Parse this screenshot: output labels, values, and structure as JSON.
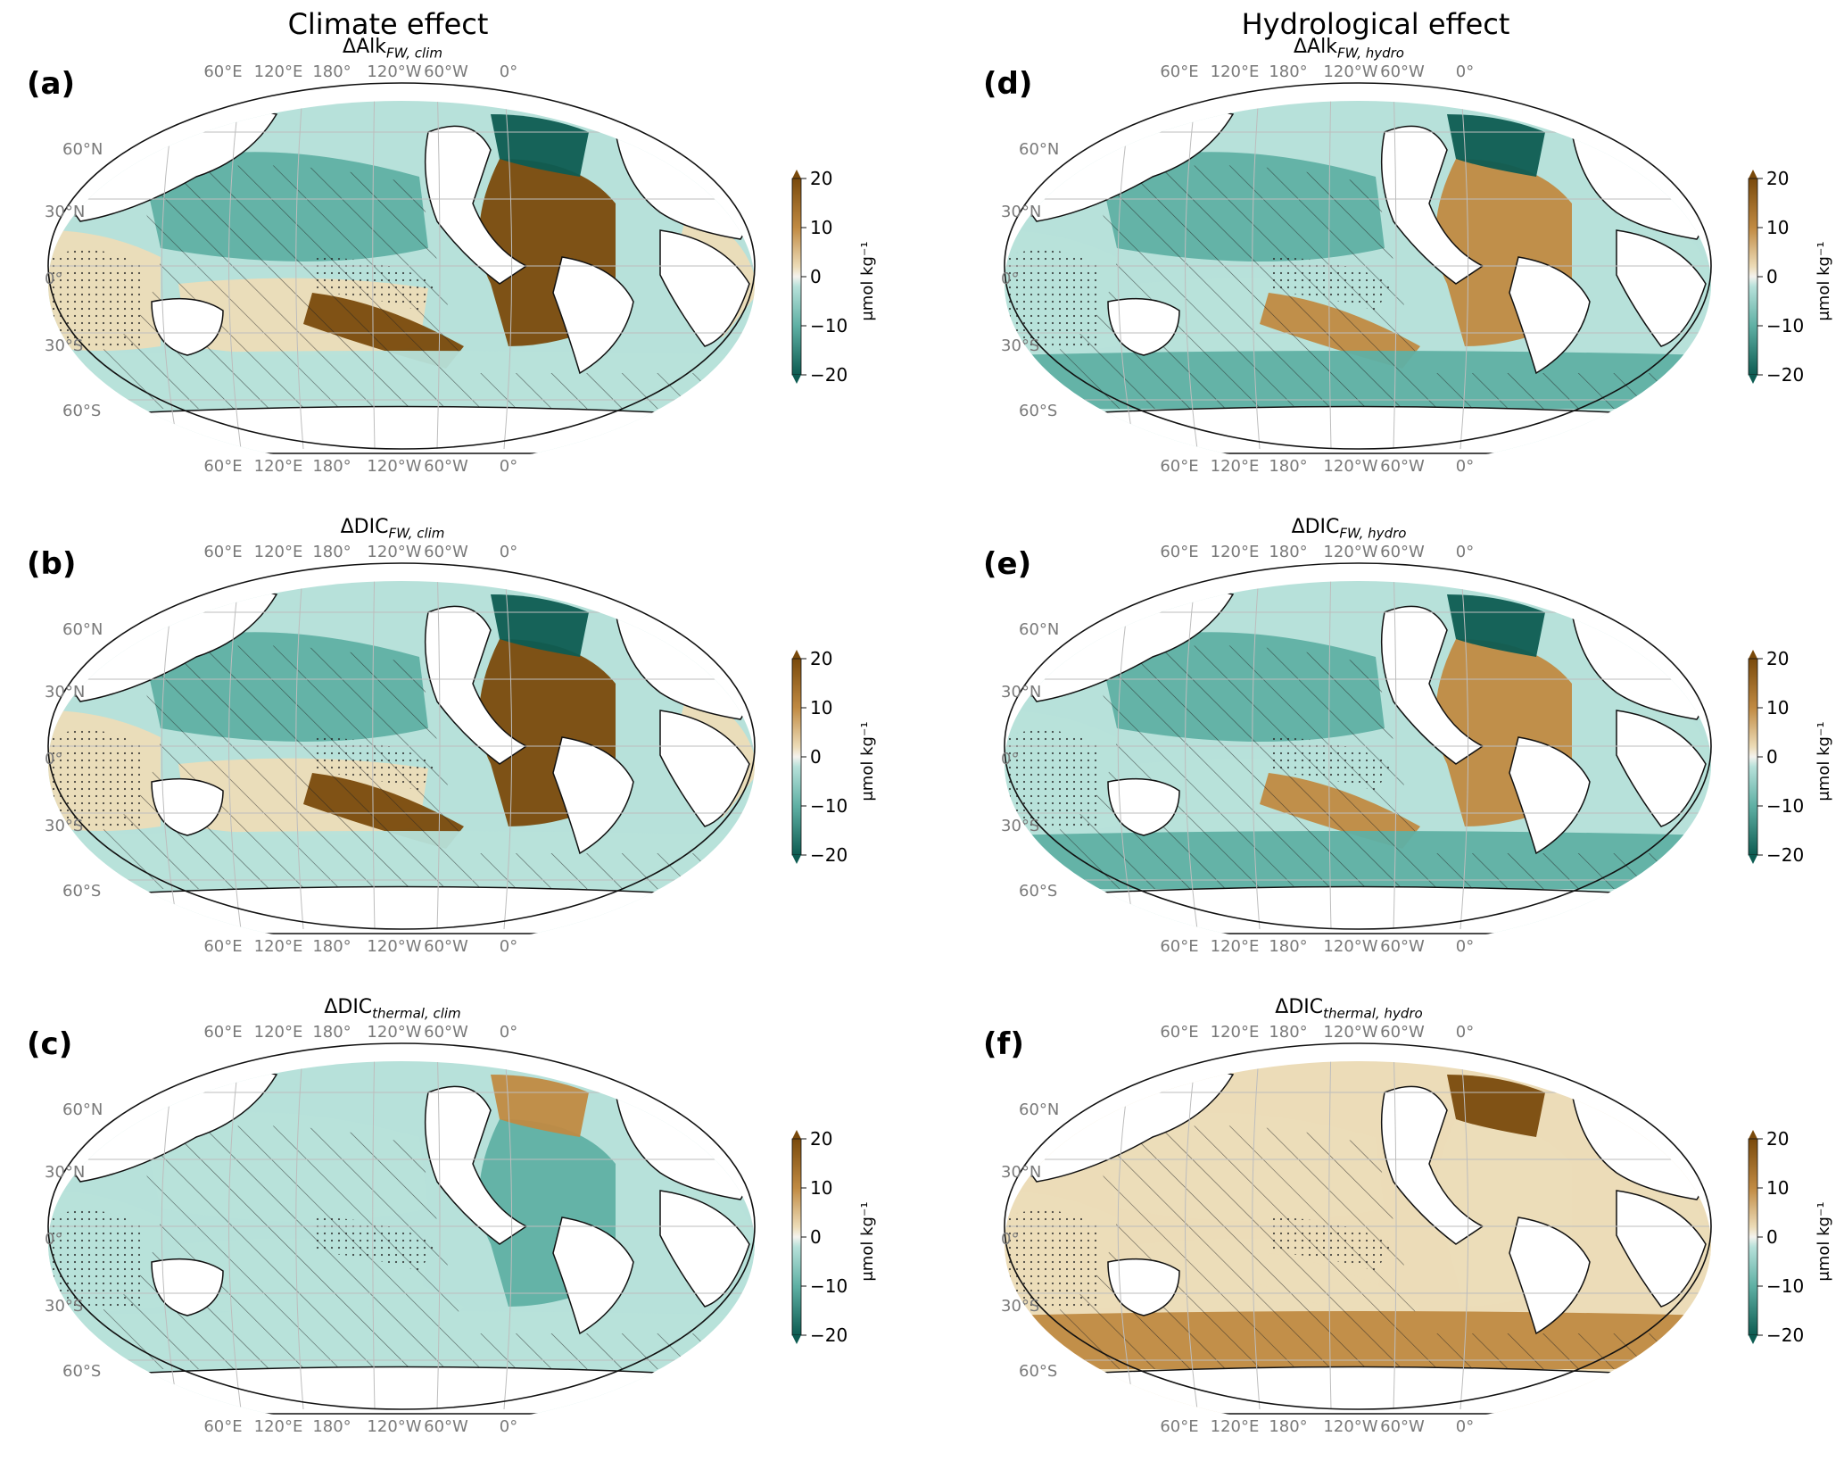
{
  "column_titles": [
    "Climate effect",
    "Hydrological effect"
  ],
  "colors": {
    "brown_strong": "#7a4a0c",
    "brown_mid": "#c08a42",
    "tan_light": "#ecdcb8",
    "neutral": "#f4f3ee",
    "teal_light": "#b7e1da",
    "teal_mid": "#5fb0a4",
    "teal_dark": "#0d5c52"
  },
  "lon_labels": [
    "60°E",
    "120°E",
    "180°",
    "120°W",
    "60°W",
    "0°"
  ],
  "lat_labels": [
    "60°N",
    "30°N",
    "0°",
    "30°S",
    "60°S"
  ],
  "colorbar": {
    "ticks": [
      "20",
      "10",
      "0",
      "−10",
      "−20"
    ],
    "unit": "μmol kg⁻¹"
  },
  "panels": [
    {
      "letter": "(a)",
      "title_main": "ΔAlk",
      "title_sub": "FW, clim",
      "style": "alk_clim"
    },
    {
      "letter": "(b)",
      "title_main": "ΔDIC",
      "title_sub": "FW, clim",
      "style": "dic_clim"
    },
    {
      "letter": "(c)",
      "title_main": "ΔDIC",
      "title_sub": "thermal, clim",
      "style": "therm_clim"
    },
    {
      "letter": "(d)",
      "title_main": "ΔAlk",
      "title_sub": "FW, hydro",
      "style": "alk_hydro"
    },
    {
      "letter": "(e)",
      "title_main": "ΔDIC",
      "title_sub": "FW, hydro",
      "style": "dic_hydro"
    },
    {
      "letter": "(f)",
      "title_main": "ΔDIC",
      "title_sub": "thermal, hydro",
      "style": "therm_hydro"
    }
  ]
}
